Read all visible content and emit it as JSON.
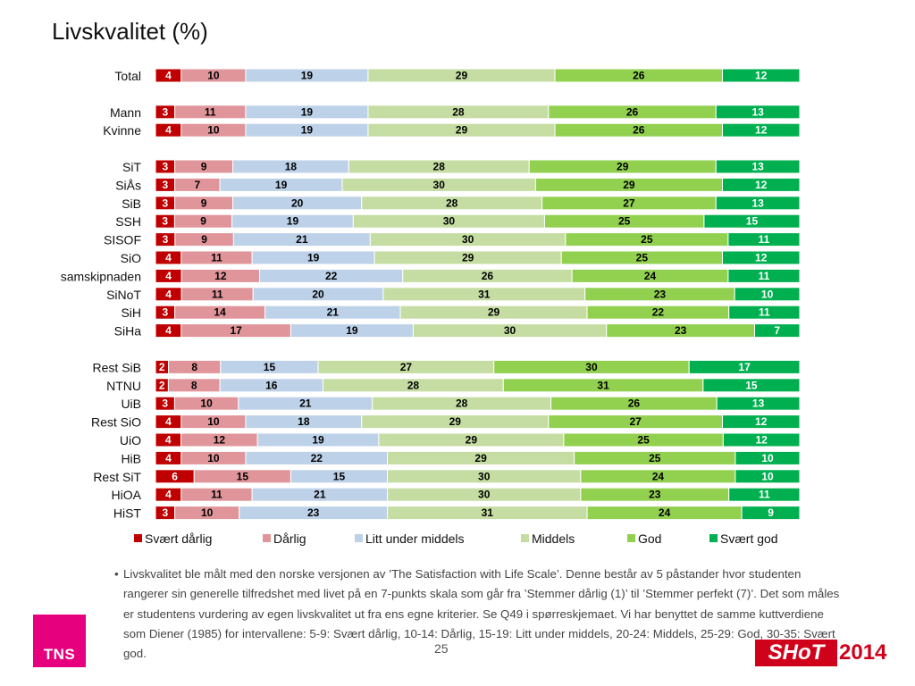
{
  "title": "Livskvalitet (%)",
  "page_number": "25",
  "footnote": "Livskvalitet ble målt med den norske versjonen av ’The Satisfaction with Life Scale’. Denne består av 5 påstander hvor studenten rangerer sin generelle tilfredshet med livet på en 7-punkts skala som går fra ’Stemmer dårlig (1)’ til ’Stemmer perfekt (7)’. Det som måles er studentens  vurdering av egen livskvalitet ut fra ens egne kriterier. Se Q49 i spørreskjemaet. Vi har benyttet de samme kuttverdiene som Diener (1985) for intervallene: 5-9: Svært dårlig, 10-14: Dårlig, 15-19: Litt under middels, 20-24: Middels, 25-29: God, 30-35: Svært god.",
  "logos": {
    "tns": "TNS",
    "shot": "SHoT",
    "shot_year": "2014"
  },
  "chart_data": {
    "type": "bar",
    "orientation": "horizontal",
    "stacked": true,
    "normalized": "100%",
    "grid": false,
    "legend_position": "bottom",
    "categories": [
      "Total",
      "Mann",
      "Kvinne",
      "SiT",
      "SiÅs",
      "SiB",
      "SSH",
      "SISOF",
      "SiO",
      "samskipnaden",
      "SiNoT",
      "SiH",
      "SiHa",
      "Rest SiB",
      "NTNU",
      "UiB",
      "Rest SiO",
      "UiO",
      "HiB",
      "Rest SiT",
      "HiOA",
      "HiST"
    ],
    "groups": [
      [
        0
      ],
      [
        1,
        2
      ],
      [
        3,
        4,
        5,
        6,
        7,
        8,
        9,
        10,
        11,
        12
      ],
      [
        13,
        14,
        15,
        16,
        17,
        18,
        19,
        20,
        21
      ]
    ],
    "series": [
      {
        "name": "Svært dårlig",
        "color": "#c00000",
        "label_color": "#ffffff",
        "values": [
          4,
          3,
          4,
          3,
          3,
          3,
          3,
          3,
          4,
          4,
          4,
          3,
          4,
          2,
          2,
          3,
          4,
          4,
          4,
          6,
          4,
          3
        ]
      },
      {
        "name": "Dårlig",
        "color": "#e0959a",
        "label_color": "#000000",
        "values": [
          10,
          11,
          10,
          9,
          7,
          9,
          9,
          9,
          11,
          12,
          11,
          14,
          17,
          8,
          8,
          10,
          10,
          12,
          10,
          15,
          11,
          10
        ]
      },
      {
        "name": "Litt under middels",
        "color": "#bdd1e8",
        "label_color": "#000000",
        "values": [
          19,
          19,
          19,
          18,
          19,
          20,
          19,
          21,
          19,
          22,
          20,
          21,
          19,
          15,
          16,
          21,
          18,
          19,
          22,
          15,
          21,
          23
        ]
      },
      {
        "name": "Middels",
        "color": "#c5dca2",
        "label_color": "#000000",
        "values": [
          29,
          28,
          29,
          28,
          30,
          28,
          30,
          30,
          29,
          26,
          31,
          29,
          30,
          27,
          28,
          28,
          29,
          29,
          29,
          30,
          30,
          31
        ]
      },
      {
        "name": "God",
        "color": "#92d050",
        "label_color": "#000000",
        "values": [
          26,
          26,
          26,
          29,
          29,
          27,
          25,
          25,
          25,
          24,
          23,
          22,
          23,
          30,
          31,
          26,
          27,
          25,
          25,
          24,
          23,
          24
        ]
      },
      {
        "name": "Svært god",
        "color": "#00b050",
        "label_color": "#ffffff",
        "values": [
          12,
          13,
          12,
          13,
          12,
          13,
          15,
          11,
          12,
          11,
          10,
          11,
          7,
          17,
          15,
          13,
          12,
          12,
          10,
          10,
          11,
          9
        ]
      }
    ]
  }
}
